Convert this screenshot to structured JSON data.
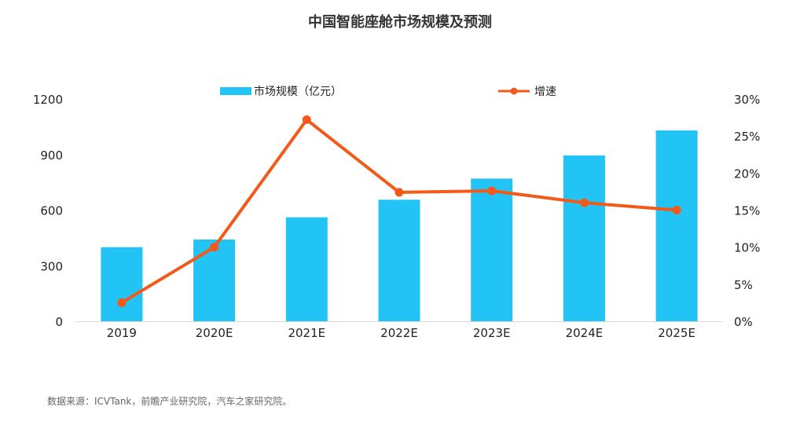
{
  "chart_data": {
    "type": "bar",
    "title": "中国智能座舱市场规模及预测",
    "categories": [
      "2019",
      "2020E",
      "2021E",
      "2022E",
      "2023E",
      "2024E",
      "2025E"
    ],
    "series": [
      {
        "name": "市场规模（亿元）",
        "type": "bar",
        "axis": "left",
        "color": "#22c4f6",
        "values": [
          400,
          441,
          561,
          656,
          770,
          895,
          1030
        ]
      },
      {
        "name": "增速",
        "type": "line",
        "axis": "right",
        "color": "#f35a1a",
        "values": [
          2.5,
          10.0,
          27.2,
          17.4,
          17.6,
          16.0,
          15.0
        ]
      }
    ],
    "y_left": {
      "ylim": [
        0,
        1200
      ],
      "ticks": [
        "0",
        "300",
        "600",
        "900",
        "1200"
      ]
    },
    "y_right": {
      "ylim": [
        0,
        30
      ],
      "ticks": [
        "0%",
        "5%",
        "10%",
        "15%",
        "20%",
        "25%",
        "30%"
      ]
    },
    "legend_position": "top",
    "grid": false
  },
  "source_note": "数据来源：ICVTank，前瞻产业研究院，汽车之家研究院。"
}
